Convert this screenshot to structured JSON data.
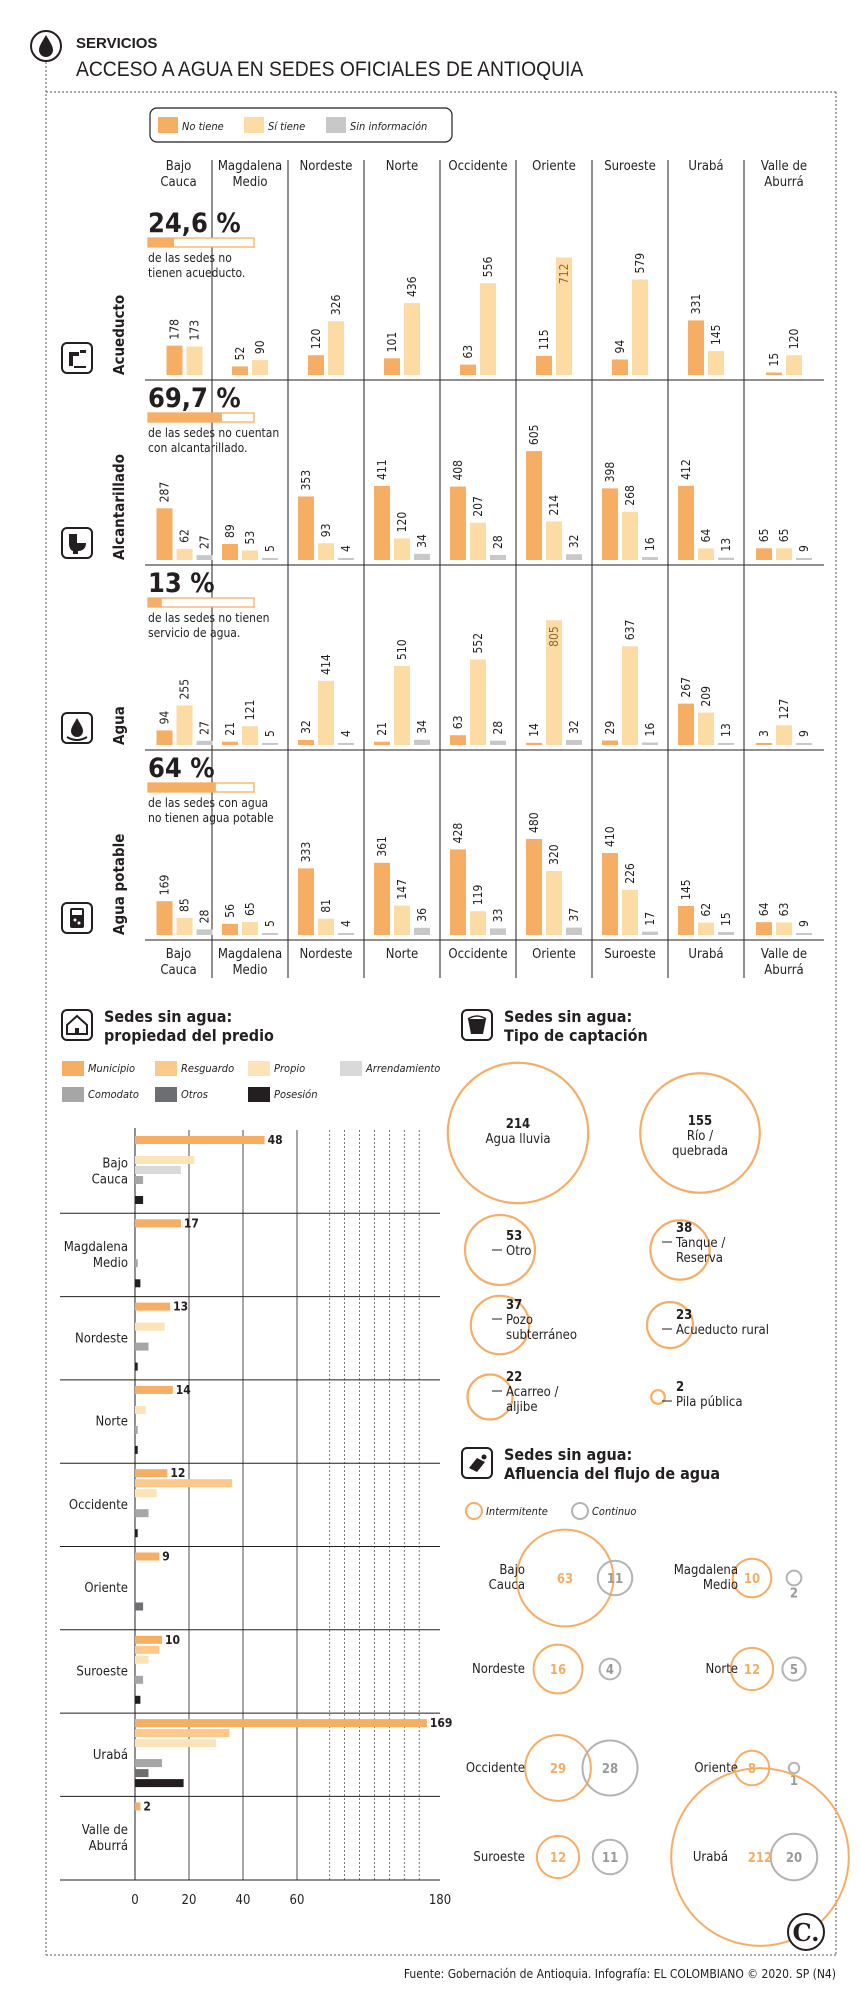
{
  "header": {
    "section": "SERVICIOS",
    "title": "ACCESO A AGUA EN SEDES OFICIALES DE ANTIOQUIA"
  },
  "colors": {
    "no_tiene": "#f6ad64",
    "si_tiene": "#fddba4",
    "sin_info": "#c8c8c8",
    "municipio": "#f6ad64",
    "resguardo": "#fcc98a",
    "propio": "#fde3b8",
    "arrendamiento": "#d9d9d9",
    "comodato": "#a6a6a6",
    "otros": "#6d6e71",
    "posesion": "#231f20",
    "circle": "#f6ad64",
    "circle_gray": "#b3b3b3"
  },
  "chart_data": [
    {
      "type": "bar",
      "title": "Acceso a agua en sedes oficiales por subregión",
      "legend": [
        "No tiene",
        "Sí tiene",
        "Sin información"
      ],
      "categories": [
        "Bajo Cauca",
        "Magdalena Medio",
        "Nordeste",
        "Norte",
        "Occidente",
        "Oriente",
        "Suroeste",
        "Urabá",
        "Valle de Aburrá"
      ],
      "category_lines": [
        [
          "Bajo",
          "Cauca"
        ],
        [
          "Magdalena",
          "Medio"
        ],
        [
          "Nordeste"
        ],
        [
          "Norte"
        ],
        [
          "Occidente"
        ],
        [
          "Oriente"
        ],
        [
          "Suroeste"
        ],
        [
          "Urabá"
        ],
        [
          "Valle de",
          "Aburrá"
        ]
      ],
      "category_lines_bottom": [
        [
          "Bajo",
          "Cauca"
        ],
        [
          "Magdalena",
          "Medio"
        ],
        [
          "Nordeste"
        ],
        [
          "Norte"
        ],
        [
          "Occidente"
        ],
        [
          "Oriente"
        ],
        [
          "Suroeste"
        ],
        [
          "Urabá"
        ],
        [
          "Valle de",
          "Aburrá"
        ]
      ],
      "rows": [
        {
          "label": "Acueducto",
          "icon": "faucet-icon",
          "stat": "24,6 %",
          "stat_fraction": 0.246,
          "note": [
            "de las sedes no",
            "tienen acueducto."
          ],
          "series": [
            {
              "name": "No tiene",
              "values": [
                178,
                52,
                120,
                101,
                63,
                115,
                94,
                331,
                15
              ]
            },
            {
              "name": "Sí tiene",
              "values": [
                173,
                90,
                326,
                436,
                556,
                712,
                579,
                145,
                120
              ]
            }
          ]
        },
        {
          "label": "Alcantarillado",
          "icon": "toilet-icon",
          "stat": "69,7 %",
          "stat_fraction": 0.697,
          "note": [
            "de las sedes no cuentan",
            "con alcantarillado."
          ],
          "series": [
            {
              "name": "No tiene",
              "values": [
                287,
                89,
                353,
                411,
                408,
                605,
                398,
                412,
                65
              ]
            },
            {
              "name": "Sí tiene",
              "values": [
                62,
                53,
                93,
                120,
                207,
                214,
                268,
                64,
                65
              ]
            },
            {
              "name": "Sin información",
              "values": [
                27,
                5,
                4,
                34,
                28,
                32,
                16,
                13,
                9
              ]
            }
          ]
        },
        {
          "label": "Agua",
          "icon": "water-drop-icon",
          "stat": "13 %",
          "stat_fraction": 0.13,
          "note": [
            "de las sedes no tienen",
            "servicio de agua."
          ],
          "series": [
            {
              "name": "No tiene",
              "values": [
                94,
                21,
                32,
                21,
                63,
                14,
                29,
                267,
                3
              ]
            },
            {
              "name": "Sí tiene",
              "values": [
                255,
                121,
                414,
                510,
                552,
                805,
                637,
                209,
                127
              ]
            },
            {
              "name": "Sin información",
              "values": [
                27,
                5,
                4,
                34,
                28,
                32,
                16,
                13,
                9
              ]
            }
          ]
        },
        {
          "label": "Agua potable",
          "icon": "water-filter-icon",
          "stat": "64 %",
          "stat_fraction": 0.64,
          "note": [
            "de las sedes con agua",
            "no tienen agua potable"
          ],
          "series": [
            {
              "name": "No tiene",
              "values": [
                169,
                56,
                333,
                361,
                428,
                480,
                410,
                145,
                64
              ]
            },
            {
              "name": "Sí tiene",
              "values": [
                85,
                65,
                81,
                147,
                119,
                320,
                226,
                62,
                63
              ]
            },
            {
              "name": "Sin información",
              "values": [
                28,
                5,
                4,
                36,
                33,
                37,
                17,
                15,
                9
              ]
            }
          ]
        }
      ]
    },
    {
      "type": "bar",
      "orientation": "horizontal",
      "title": "Sedes sin agua: propiedad del predio",
      "title_lines": [
        "Sedes sin agua:",
        "propiedad del predio"
      ],
      "legend": [
        "Municipio",
        "Resguardo",
        "Propio",
        "Arrendamiento",
        "Comodato",
        "Otros",
        "Posesión"
      ],
      "categories": [
        "Bajo Cauca",
        "Magdalena Medio",
        "Nordeste",
        "Norte",
        "Occidente",
        "Oriente",
        "Suroeste",
        "Urabá",
        "Valle de Aburrá"
      ],
      "category_lines": [
        [
          "Bajo",
          "Cauca"
        ],
        [
          "Magdalena",
          "Medio"
        ],
        [
          "Nordeste"
        ],
        [
          "Norte"
        ],
        [
          "Occidente"
        ],
        [
          "Oriente"
        ],
        [
          "Suroeste"
        ],
        [
          "Urabá"
        ],
        [
          "Valle de",
          "Aburrá"
        ]
      ],
      "x_ticks": [
        "0",
        "20",
        "40",
        "60",
        "180"
      ],
      "x_axis_note": "broken axis between 60 and 180",
      "series": [
        {
          "name": "Municipio",
          "values": [
            48,
            17,
            13,
            14,
            12,
            9,
            10,
            169,
            2
          ],
          "labeled": true
        },
        {
          "name": "Resguardo",
          "values": [
            0,
            0,
            0,
            0,
            36,
            0,
            9,
            35,
            0
          ]
        },
        {
          "name": "Propio",
          "values": [
            22,
            0,
            11,
            4,
            8,
            0,
            5,
            30,
            0
          ]
        },
        {
          "name": "Arrendamiento",
          "values": [
            17,
            0,
            0,
            0,
            0,
            0,
            0,
            0,
            0
          ]
        },
        {
          "name": "Comodato",
          "values": [
            3,
            1,
            5,
            1,
            5,
            0,
            3,
            10,
            0
          ]
        },
        {
          "name": "Otros",
          "values": [
            0,
            0,
            0,
            0,
            0,
            3,
            0,
            5,
            0
          ]
        },
        {
          "name": "Posesión",
          "values": [
            3,
            2,
            1,
            1,
            1,
            0,
            2,
            18,
            0
          ]
        }
      ]
    },
    {
      "type": "bubble",
      "title": "Sedes sin agua: Tipo de captación",
      "title_lines": [
        "Sedes sin agua:",
        "Tipo de captación"
      ],
      "items": [
        {
          "value": 214,
          "label": [
            "Agua lluvia"
          ]
        },
        {
          "value": 155,
          "label": [
            "Río /",
            "quebrada"
          ]
        },
        {
          "value": 53,
          "label": [
            "Otro"
          ]
        },
        {
          "value": 38,
          "label": [
            "Tanque /",
            "Reserva"
          ]
        },
        {
          "value": 37,
          "label": [
            "Pozo",
            "subterráneo"
          ]
        },
        {
          "value": 23,
          "label": [
            "Acueducto rural"
          ]
        },
        {
          "value": 22,
          "label": [
            "Acarreo /",
            "aljibe"
          ]
        },
        {
          "value": 2,
          "label": [
            "Pila pública"
          ]
        }
      ]
    },
    {
      "type": "bubble",
      "title": "Sedes sin agua: Afluencia del flujo de agua",
      "title_lines": [
        "Sedes sin agua:",
        "Afluencia del flujo de agua"
      ],
      "legend": [
        "Intermitente",
        "Continuo"
      ],
      "items": [
        {
          "region": [
            "Bajo",
            "Cauca"
          ],
          "intermitente": 63,
          "continuo": 11
        },
        {
          "region": [
            "Magdalena",
            "Medio"
          ],
          "intermitente": 10,
          "continuo": 2
        },
        {
          "region": [
            "Nordeste"
          ],
          "intermitente": 16,
          "continuo": 4
        },
        {
          "region": [
            "Norte"
          ],
          "intermitente": 12,
          "continuo": 5
        },
        {
          "region": [
            "Occidente"
          ],
          "intermitente": 29,
          "continuo": 28
        },
        {
          "region": [
            "Oriente"
          ],
          "intermitente": 8,
          "continuo": 1
        },
        {
          "region": [
            "Suroeste"
          ],
          "intermitente": 12,
          "continuo": 11
        },
        {
          "region": [
            "Urabá"
          ],
          "intermitente": 212,
          "continuo": 20
        }
      ]
    }
  ],
  "source": "Fuente: Gobernación de Antioquia. Infografía: EL COLOMBIANO © 2020. SP (N4)",
  "logo": "C."
}
